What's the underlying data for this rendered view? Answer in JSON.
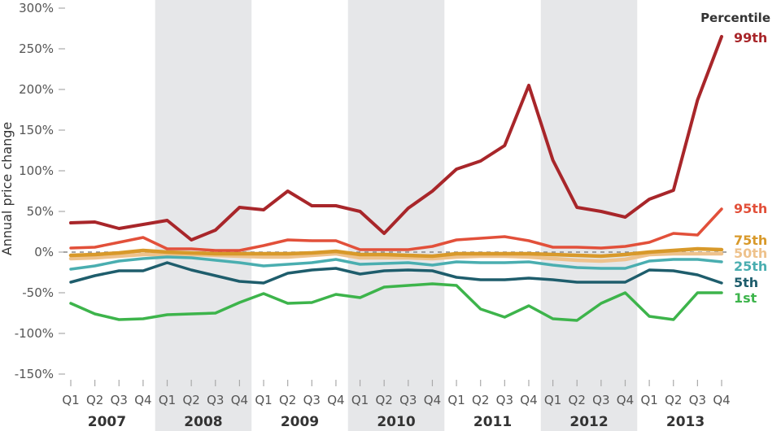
{
  "chart_data": {
    "type": "line",
    "title": "",
    "xlabel": "",
    "ylabel": "Annual price change",
    "ylim": [
      -150,
      300
    ],
    "yticks": [
      300,
      250,
      200,
      150,
      100,
      50,
      0,
      -50,
      -100,
      -150
    ],
    "ytick_labels": [
      "300%",
      "250%",
      "200%",
      "150%",
      "100%",
      "50%",
      "0%",
      "-50%",
      "-100%",
      "-150%"
    ],
    "years": [
      "2007",
      "2008",
      "2009",
      "2010",
      "2011",
      "2012",
      "2013"
    ],
    "shaded_years": [
      "2008",
      "2010",
      "2012"
    ],
    "quarters": [
      "Q1",
      "Q2",
      "Q3",
      "Q4"
    ],
    "x": [
      "2007 Q1",
      "2007 Q2",
      "2007 Q3",
      "2007 Q4",
      "2008 Q1",
      "2008 Q2",
      "2008 Q3",
      "2008 Q4",
      "2009 Q1",
      "2009 Q2",
      "2009 Q3",
      "2009 Q4",
      "2010 Q1",
      "2010 Q2",
      "2010 Q3",
      "2010 Q4",
      "2011 Q1",
      "2011 Q2",
      "2011 Q3",
      "2011 Q4",
      "2012 Q1",
      "2012 Q2",
      "2012 Q3",
      "2012 Q4",
      "2013 Q1",
      "2013 Q2",
      "2013 Q3",
      "2013 Q4"
    ],
    "legend_title": "Percentile",
    "legend_placement": "right (labels at line ends)",
    "zero_line": "dashed",
    "series": [
      {
        "name": "99th",
        "color": "#a8262a",
        "values": [
          36,
          37,
          29,
          34,
          39,
          15,
          27,
          55,
          52,
          75,
          57,
          57,
          50,
          23,
          54,
          75,
          102,
          112,
          131,
          205,
          113,
          55,
          50,
          43,
          65,
          76,
          187,
          265
        ]
      },
      {
        "name": "95th",
        "color": "#e2503a",
        "values": [
          5,
          6,
          12,
          18,
          4,
          4,
          2,
          2,
          8,
          15,
          14,
          14,
          3,
          3,
          3,
          7,
          15,
          17,
          19,
          14,
          6,
          6,
          5,
          7,
          12,
          23,
          21,
          53
        ]
      },
      {
        "name": "75th",
        "color": "#d8992a",
        "values": [
          -4,
          -3,
          -1,
          2,
          0,
          -1,
          -2,
          -2,
          -2,
          -2,
          -1,
          1,
          -3,
          -3,
          -4,
          -5,
          -2,
          -2,
          -2,
          -2,
          -3,
          -4,
          -5,
          -3,
          0,
          2,
          4,
          3
        ]
      },
      {
        "name": "50th",
        "color": "#eec28c",
        "values": [
          -8,
          -7,
          -5,
          -3,
          -3,
          -3,
          -4,
          -5,
          -6,
          -6,
          -4,
          -2,
          -7,
          -7,
          -7,
          -8,
          -6,
          -5,
          -5,
          -6,
          -8,
          -10,
          -11,
          -9,
          -3,
          -2,
          -2,
          -2
        ]
      },
      {
        "name": "25th",
        "color": "#4aaeb0",
        "values": [
          -21,
          -17,
          -11,
          -8,
          -6,
          -7,
          -10,
          -13,
          -17,
          -15,
          -13,
          -9,
          -15,
          -14,
          -13,
          -16,
          -12,
          -13,
          -13,
          -12,
          -16,
          -19,
          -20,
          -20,
          -11,
          -9,
          -9,
          -12
        ]
      },
      {
        "name": "5th",
        "color": "#1e5d6c",
        "values": [
          -37,
          -29,
          -23,
          -23,
          -13,
          -22,
          -29,
          -36,
          -38,
          -26,
          -22,
          -20,
          -27,
          -23,
          -22,
          -23,
          -31,
          -34,
          -34,
          -32,
          -34,
          -37,
          -37,
          -37,
          -22,
          -23,
          -28,
          -38
        ]
      },
      {
        "name": "1st",
        "color": "#3db44b",
        "values": [
          -63,
          -76,
          -83,
          -82,
          -77,
          -76,
          -75,
          -62,
          -51,
          -63,
          -62,
          -52,
          -56,
          -43,
          -41,
          -39,
          -41,
          -70,
          -80,
          -66,
          -82,
          -84,
          -63,
          -50,
          -79,
          -83,
          -50,
          -50
        ]
      }
    ]
  }
}
